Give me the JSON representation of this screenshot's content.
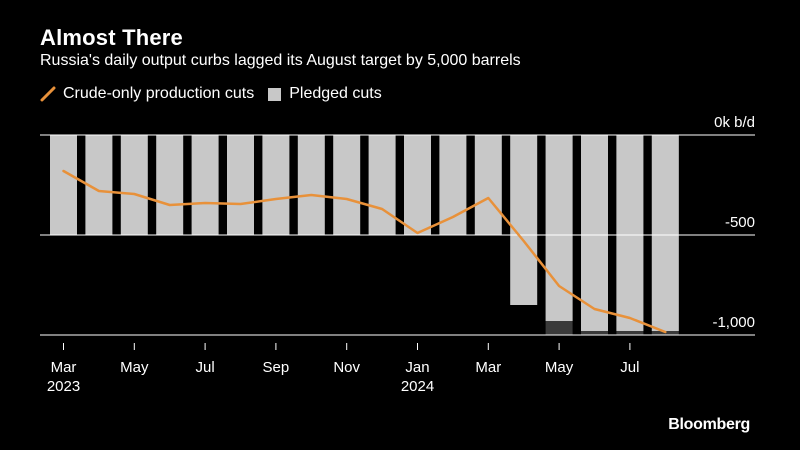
{
  "title": "Almost There",
  "subtitle": "Russia's daily output curbs lagged its August target by 5,000 barrels",
  "brand": "Bloomberg",
  "colors": {
    "line": "#e8913a",
    "pledged": "#c8c8c8",
    "dark": "#3a3a3a",
    "background": "#000000"
  },
  "chart_data": {
    "type": "bar",
    "title": "Almost There",
    "ylabel": "k b/d",
    "ylim": [
      -1000,
      0
    ],
    "legend": [
      {
        "name": "Crude-only production cuts",
        "kind": "line"
      },
      {
        "name": "Pledged cuts",
        "kind": "bar"
      }
    ],
    "categories": [
      "Mar 2023",
      "Apr 2023",
      "May 2023",
      "Jun 2023",
      "Jul 2023",
      "Aug 2023",
      "Sep 2023",
      "Oct 2023",
      "Nov 2023",
      "Dec 2023",
      "Jan 2024",
      "Feb 2024",
      "Mar 2024",
      "Apr 2024",
      "May 2024",
      "Jun 2024",
      "Jul 2024",
      "Aug 2024"
    ],
    "series": [
      {
        "name": "Pledged cuts",
        "values": [
          -500,
          -500,
          -500,
          -500,
          -500,
          -500,
          -500,
          -500,
          -500,
          -500,
          -500,
          -500,
          -500,
          -850,
          -930,
          -980,
          -980,
          -980
        ]
      },
      {
        "name": "Pledged cuts (dark segment)",
        "values": [
          null,
          null,
          null,
          null,
          null,
          null,
          null,
          null,
          null,
          null,
          null,
          null,
          null,
          null,
          -1000,
          -1000,
          -1000,
          -1000
        ]
      },
      {
        "name": "Crude-only production cuts",
        "values": [
          -180,
          -280,
          -295,
          -350,
          -340,
          -345,
          -320,
          -300,
          -320,
          -370,
          -490,
          -410,
          -315,
          -530,
          -755,
          -870,
          -915,
          -985
        ]
      }
    ],
    "y_ticks": [
      {
        "value": 0,
        "label": "0k b/d"
      },
      {
        "value": -500,
        "label": "-500"
      },
      {
        "value": -1000,
        "label": "-1,000"
      }
    ],
    "x_ticks": [
      {
        "index": 0,
        "label": "Mar",
        "year": "2023"
      },
      {
        "index": 2,
        "label": "May",
        "year": ""
      },
      {
        "index": 4,
        "label": "Jul",
        "year": ""
      },
      {
        "index": 6,
        "label": "Sep",
        "year": ""
      },
      {
        "index": 8,
        "label": "Nov",
        "year": ""
      },
      {
        "index": 10,
        "label": "Jan",
        "year": "2024"
      },
      {
        "index": 12,
        "label": "Mar",
        "year": ""
      },
      {
        "index": 14,
        "label": "May",
        "year": ""
      },
      {
        "index": 16,
        "label": "Jul",
        "year": ""
      }
    ]
  }
}
